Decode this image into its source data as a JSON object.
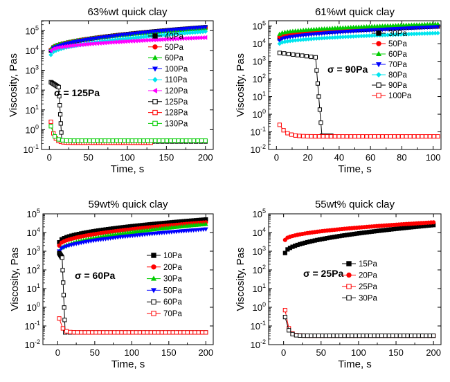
{
  "chart_data": [
    {
      "type": "line",
      "title": "63%wt quick clay",
      "xlabel": "Time, s",
      "ylabel": "Viscosity, Pas",
      "xlim": [
        -10,
        210
      ],
      "ylim_log10": [
        -1,
        5.5
      ],
      "y_scale": "log",
      "xticks": [
        0,
        50,
        100,
        150,
        200
      ],
      "yticks_exp": [
        -1,
        0,
        1,
        2,
        3,
        4,
        5
      ],
      "annotation": "σ = 125Pa",
      "legend_position": "right",
      "series": [
        {
          "name": "40Pa",
          "color": "#000000",
          "marker": "square",
          "filled": true,
          "kind": "high",
          "x_end": 200,
          "y_start": 10000,
          "y_end": 150000
        },
        {
          "name": "50Pa",
          "color": "#ff0000",
          "marker": "circle",
          "filled": true,
          "kind": "high",
          "x_end": 200,
          "y_start": 11000,
          "y_end": 140000
        },
        {
          "name": "60Pa",
          "color": "#00cc00",
          "marker": "triangle-up",
          "filled": true,
          "kind": "high",
          "x_end": 200,
          "y_start": 12000,
          "y_end": 130000
        },
        {
          "name": "100Pa",
          "color": "#0000ff",
          "marker": "triangle-down",
          "filled": true,
          "kind": "high",
          "x_end": 200,
          "y_start": 9000,
          "y_end": 150000
        },
        {
          "name": "110Pa",
          "color": "#00e5ee",
          "marker": "diamond",
          "filled": true,
          "kind": "high",
          "x_end": 200,
          "y_start": 6000,
          "y_end": 90000
        },
        {
          "name": "120Pa",
          "color": "#ff00ff",
          "marker": "triangle-left",
          "filled": true,
          "kind": "high",
          "x_end": 200,
          "y_start": 10000,
          "y_end": 45000
        },
        {
          "name": "125Pa",
          "color": "#000000",
          "marker": "square",
          "filled": false,
          "kind": "drop",
          "x_end": 200,
          "y_start": 250,
          "y_end": 0.25,
          "x_drop": 14
        },
        {
          "name": "128Pa",
          "color": "#ff0000",
          "marker": "square",
          "filled": false,
          "kind": "low",
          "x_end": 130,
          "y_start": 2.5,
          "y_end": 0.22
        },
        {
          "name": "130Pa",
          "color": "#00cc00",
          "marker": "square",
          "filled": false,
          "kind": "low",
          "x_end": 200,
          "y_start": 1.5,
          "y_end": 0.28
        }
      ]
    },
    {
      "type": "line",
      "title": "61%wt quick clay",
      "xlabel": "Time, s",
      "ylabel": "Viscosity, Pas",
      "xlim": [
        -5,
        105
      ],
      "ylim_log10": [
        -2,
        5.3
      ],
      "y_scale": "log",
      "xticks": [
        0,
        20,
        40,
        60,
        80,
        100
      ],
      "yticks_exp": [
        -2,
        -1,
        0,
        1,
        2,
        3,
        4,
        5
      ],
      "annotation": "σ = 90Pa",
      "legend_position": "right",
      "series": [
        {
          "name": "30Pa",
          "color": "#000000",
          "marker": "square",
          "filled": true,
          "kind": "high",
          "x_end": 103,
          "y_start": 20000,
          "y_end": 95000
        },
        {
          "name": "50Pa",
          "color": "#ff0000",
          "marker": "circle",
          "filled": true,
          "kind": "high",
          "x_end": 103,
          "y_start": 25000,
          "y_end": 100000
        },
        {
          "name": "60Pa",
          "color": "#00cc00",
          "marker": "triangle-up",
          "filled": true,
          "kind": "high",
          "x_end": 103,
          "y_start": 35000,
          "y_end": 130000
        },
        {
          "name": "70Pa",
          "color": "#0000ff",
          "marker": "triangle-down",
          "filled": true,
          "kind": "high",
          "x_end": 103,
          "y_start": 15000,
          "y_end": 90000
        },
        {
          "name": "80Pa",
          "color": "#00e5ee",
          "marker": "diamond",
          "filled": true,
          "kind": "high",
          "x_end": 103,
          "y_start": 10000,
          "y_end": 40000
        },
        {
          "name": "90Pa",
          "color": "#000000",
          "marker": "square",
          "filled": false,
          "kind": "drop",
          "x_end": 35,
          "y_start": 3000,
          "y_end": 0.06,
          "x_drop": 27
        },
        {
          "name": "100Pa",
          "color": "#ff0000",
          "marker": "square",
          "filled": false,
          "kind": "low",
          "x_end": 103,
          "y_start": 0.25,
          "y_end": 0.055
        }
      ]
    },
    {
      "type": "line",
      "title": "59wt% quick clay",
      "xlabel": "Time, s",
      "ylabel": "Viscosity, Pas",
      "xlim": [
        -20,
        210
      ],
      "ylim_log10": [
        -2,
        5
      ],
      "y_scale": "log",
      "xticks": [
        0,
        50,
        100,
        150,
        200
      ],
      "yticks_exp": [
        -2,
        -1,
        0,
        1,
        2,
        3,
        4,
        5
      ],
      "annotation": "σ = 60Pa",
      "legend_position": "right",
      "series": [
        {
          "name": "10Pa",
          "color": "#000000",
          "marker": "square",
          "filled": true,
          "kind": "high",
          "x_end": 200,
          "y_start": 3000,
          "y_end": 50000
        },
        {
          "name": "20Pa",
          "color": "#ff0000",
          "marker": "circle",
          "filled": true,
          "kind": "high",
          "x_end": 200,
          "y_start": 2000,
          "y_end": 35000
        },
        {
          "name": "30Pa",
          "color": "#00cc00",
          "marker": "triangle-up",
          "filled": true,
          "kind": "high",
          "x_end": 200,
          "y_start": 1000,
          "y_end": 28000
        },
        {
          "name": "50Pa",
          "color": "#0000ff",
          "marker": "triangle-down",
          "filled": true,
          "kind": "high",
          "x_end": 200,
          "y_start": 1000,
          "y_end": 15000
        },
        {
          "name": "60Pa",
          "color": "#000000",
          "marker": "square",
          "filled": false,
          "kind": "drop",
          "x_end": 200,
          "y_start": 800,
          "y_end": 0.045,
          "x_drop": 8
        },
        {
          "name": "70Pa",
          "color": "#ff0000",
          "marker": "square",
          "filled": false,
          "kind": "low",
          "x_end": 200,
          "y_start": 0.25,
          "y_end": 0.045
        }
      ]
    },
    {
      "type": "line",
      "title": "55wt% quick clay",
      "xlabel": "Time, s",
      "ylabel": "Viscosity, Pas",
      "xlim": [
        -20,
        210
      ],
      "ylim_log10": [
        -2,
        5
      ],
      "y_scale": "log",
      "xticks": [
        0,
        50,
        100,
        150,
        200
      ],
      "yticks_exp": [
        -2,
        -1,
        0,
        1,
        2,
        3,
        4,
        5
      ],
      "annotation": "σ = 25Pa",
      "legend_position": "right",
      "series": [
        {
          "name": "15Pa",
          "color": "#000000",
          "marker": "square",
          "filled": true,
          "kind": "high",
          "x_end": 200,
          "y_start": 800,
          "y_end": 25000
        },
        {
          "name": "20Pa",
          "color": "#ff0000",
          "marker": "circle",
          "filled": true,
          "kind": "high",
          "x_end": 200,
          "y_start": 4000,
          "y_end": 35000
        },
        {
          "name": "25Pa",
          "color": "#ff0000",
          "marker": "square",
          "filled": false,
          "kind": "low",
          "x_end": 200,
          "y_start": 0.7,
          "y_end": 0.03
        },
        {
          "name": "30Pa",
          "color": "#000000",
          "marker": "square",
          "filled": false,
          "kind": "low",
          "x_end": 200,
          "y_start": 0.3,
          "y_end": 0.03
        }
      ]
    }
  ]
}
